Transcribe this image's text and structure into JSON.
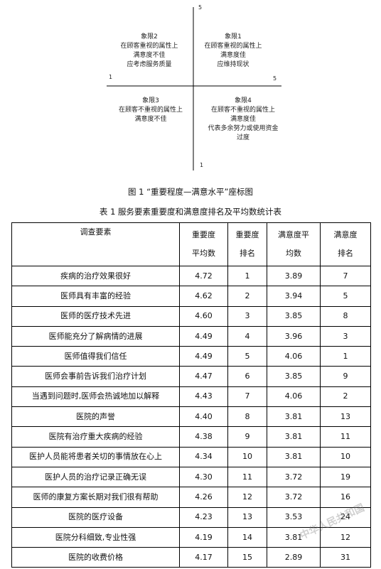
{
  "diagram": {
    "axis_top": "5",
    "axis_bottom": "1",
    "axis_left": "1",
    "axis_right": "5",
    "quadrants": [
      {
        "title": "象限2",
        "lines": [
          "在顾客重视的属性上",
          "满意度不佳",
          "应考虑服务质量"
        ]
      },
      {
        "title": "象限1",
        "lines": [
          "在顾客重视的属性上",
          "满意度佳",
          "应维持现状"
        ]
      },
      {
        "title": "象限3",
        "lines": [
          "在顾客不重视的属性上",
          "满意度不佳"
        ]
      },
      {
        "title": "象限4",
        "lines": [
          "在顾客不重视的属性上",
          "满意度佳",
          "代表多余努力或使用资金",
          "过度"
        ]
      }
    ]
  },
  "figure_caption": "图 1   “重要程度—满意水平”座标图",
  "table_caption": "表 1   服务要素重要度和满意度排名及平均数统计表",
  "table": {
    "headers": [
      {
        "line1": "调查要素",
        "line2": ""
      },
      {
        "line1": "重要度",
        "line2": "平均数"
      },
      {
        "line1": "重要度",
        "line2": "排名"
      },
      {
        "line1": "满意度平",
        "line2": "均数"
      },
      {
        "line1": "满意度",
        "line2": "排名"
      }
    ],
    "rows": [
      [
        "疾病的治疗效果很好",
        "4.72",
        "1",
        "3.89",
        "7"
      ],
      [
        "医师具有丰富的经验",
        "4.62",
        "2",
        "3.94",
        "5"
      ],
      [
        "医师的医疗技术先进",
        "4.60",
        "3",
        "3.85",
        "8"
      ],
      [
        "医师能充分了解病情的进展",
        "4.49",
        "4",
        "3.96",
        "3"
      ],
      [
        "医师值得我们信任",
        "4.49",
        "5",
        "4.06",
        "1"
      ],
      [
        "医师会事前告诉我们治疗计划",
        "4.47",
        "6",
        "3.85",
        "9"
      ],
      [
        "当遇到问题时,医师会热诚地加以解释",
        "4.43",
        "7",
        "4.06",
        "2"
      ],
      [
        "医院的声誉",
        "4.40",
        "8",
        "3.81",
        "13"
      ],
      [
        "医院有治疗重大疾病的经验",
        "4.38",
        "9",
        "3.81",
        "11"
      ],
      [
        "医护人员能将患者关切的事情放在心上",
        "4.34",
        "10",
        "3.81",
        "10"
      ],
      [
        "医护人员的治疗记录正确无误",
        "4.30",
        "11",
        "3.72",
        "19"
      ],
      [
        "医师的康复方案长期对我们很有帮助",
        "4.26",
        "12",
        "3.72",
        "16"
      ],
      [
        "医院的医疗设备",
        "4.23",
        "13",
        "3.53",
        "24"
      ],
      [
        "医院分科细致,专业性强",
        "4.19",
        "14",
        "3.81",
        "12"
      ],
      [
        "医院的收费价格",
        "4.17",
        "15",
        "2.89",
        "31"
      ]
    ]
  }
}
